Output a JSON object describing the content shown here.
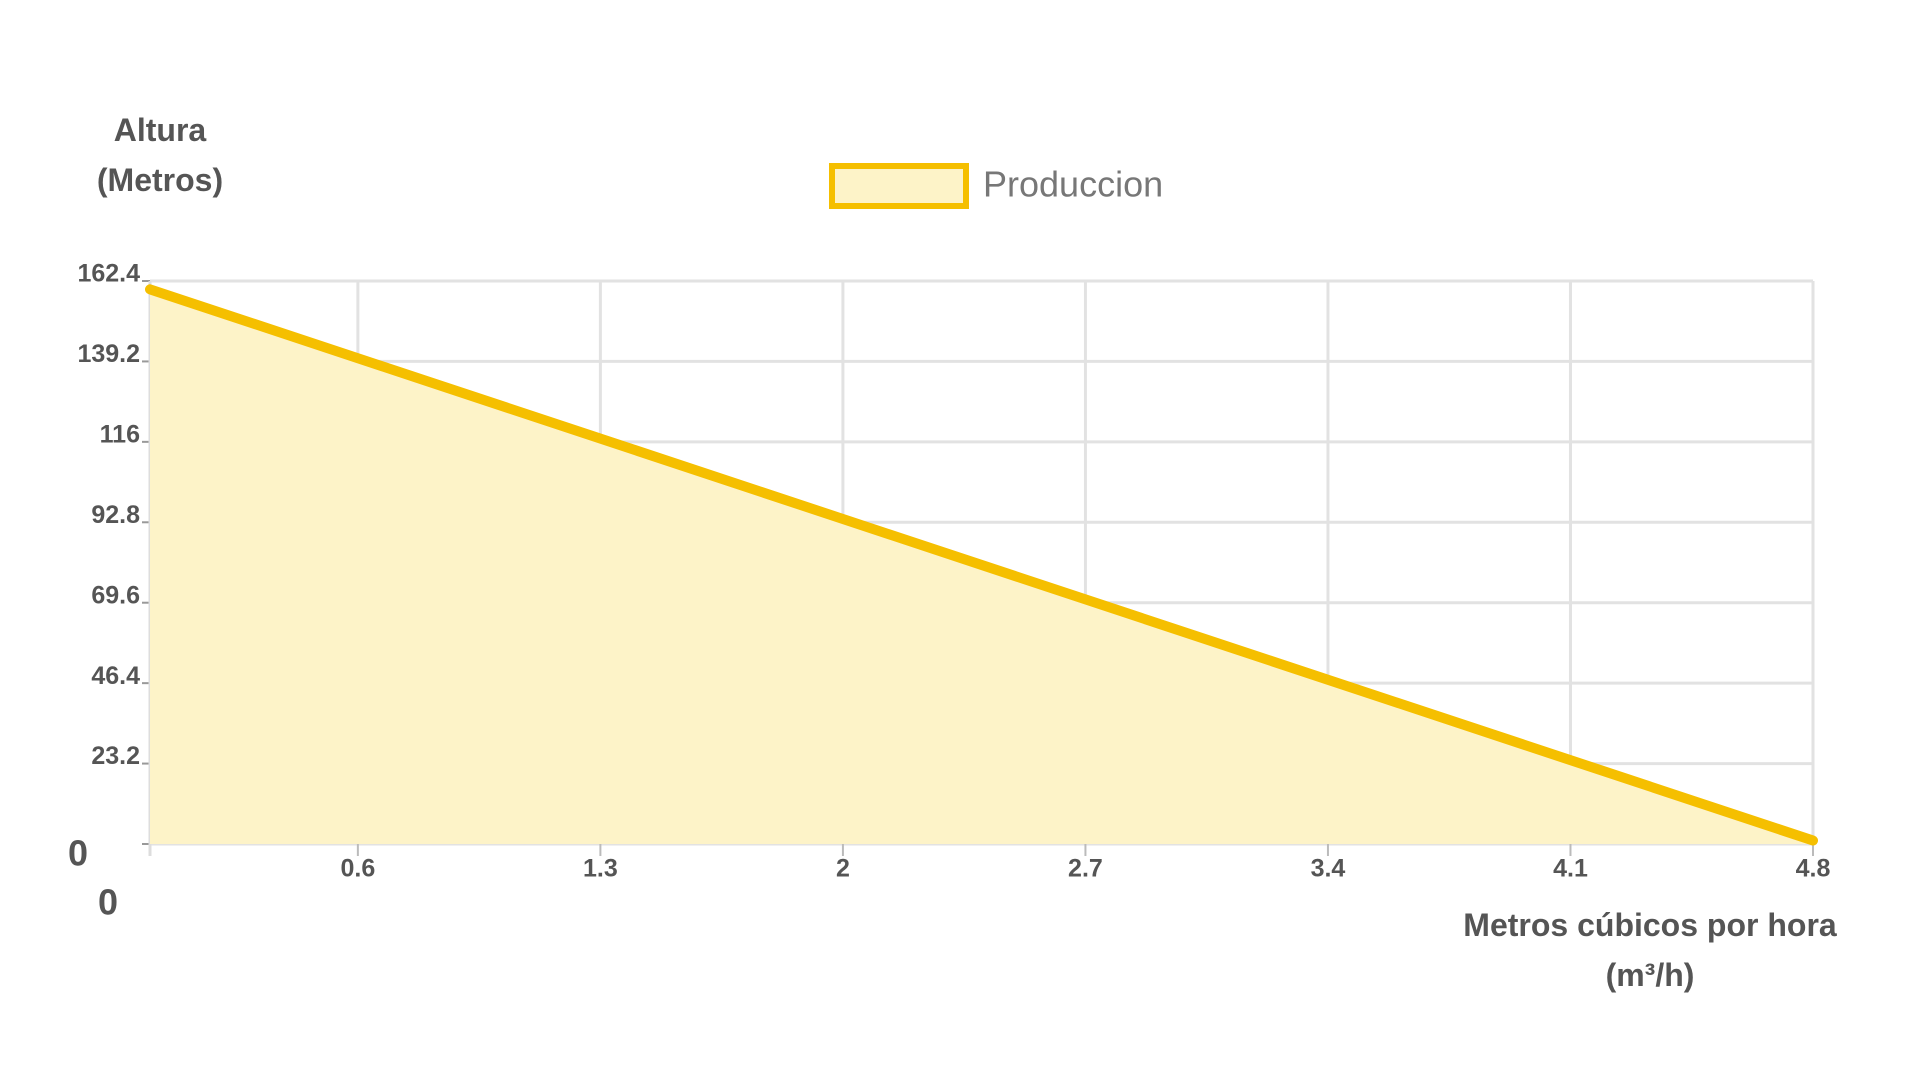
{
  "chart_data": {
    "type": "area",
    "y_label": "Altura (Metros)",
    "x_label": "Metros cúbicos por hora (m³/h)",
    "legend": "top",
    "series": [
      {
        "name": "Produccion",
        "color": "#f5bf00",
        "fill": "#fdf3c8",
        "x": [
          0,
          4.8
        ],
        "values": [
          160,
          1
        ]
      }
    ],
    "xlim": [
      0,
      4.8
    ],
    "xticks": [
      0,
      0.6,
      1.3,
      2,
      2.7,
      3.4,
      4.1,
      4.8
    ],
    "ylim": [
      0,
      162.4
    ],
    "yticks": [
      0,
      23.2,
      46.4,
      69.6,
      92.8,
      116,
      139.2,
      162.4
    ],
    "grid": true
  }
}
